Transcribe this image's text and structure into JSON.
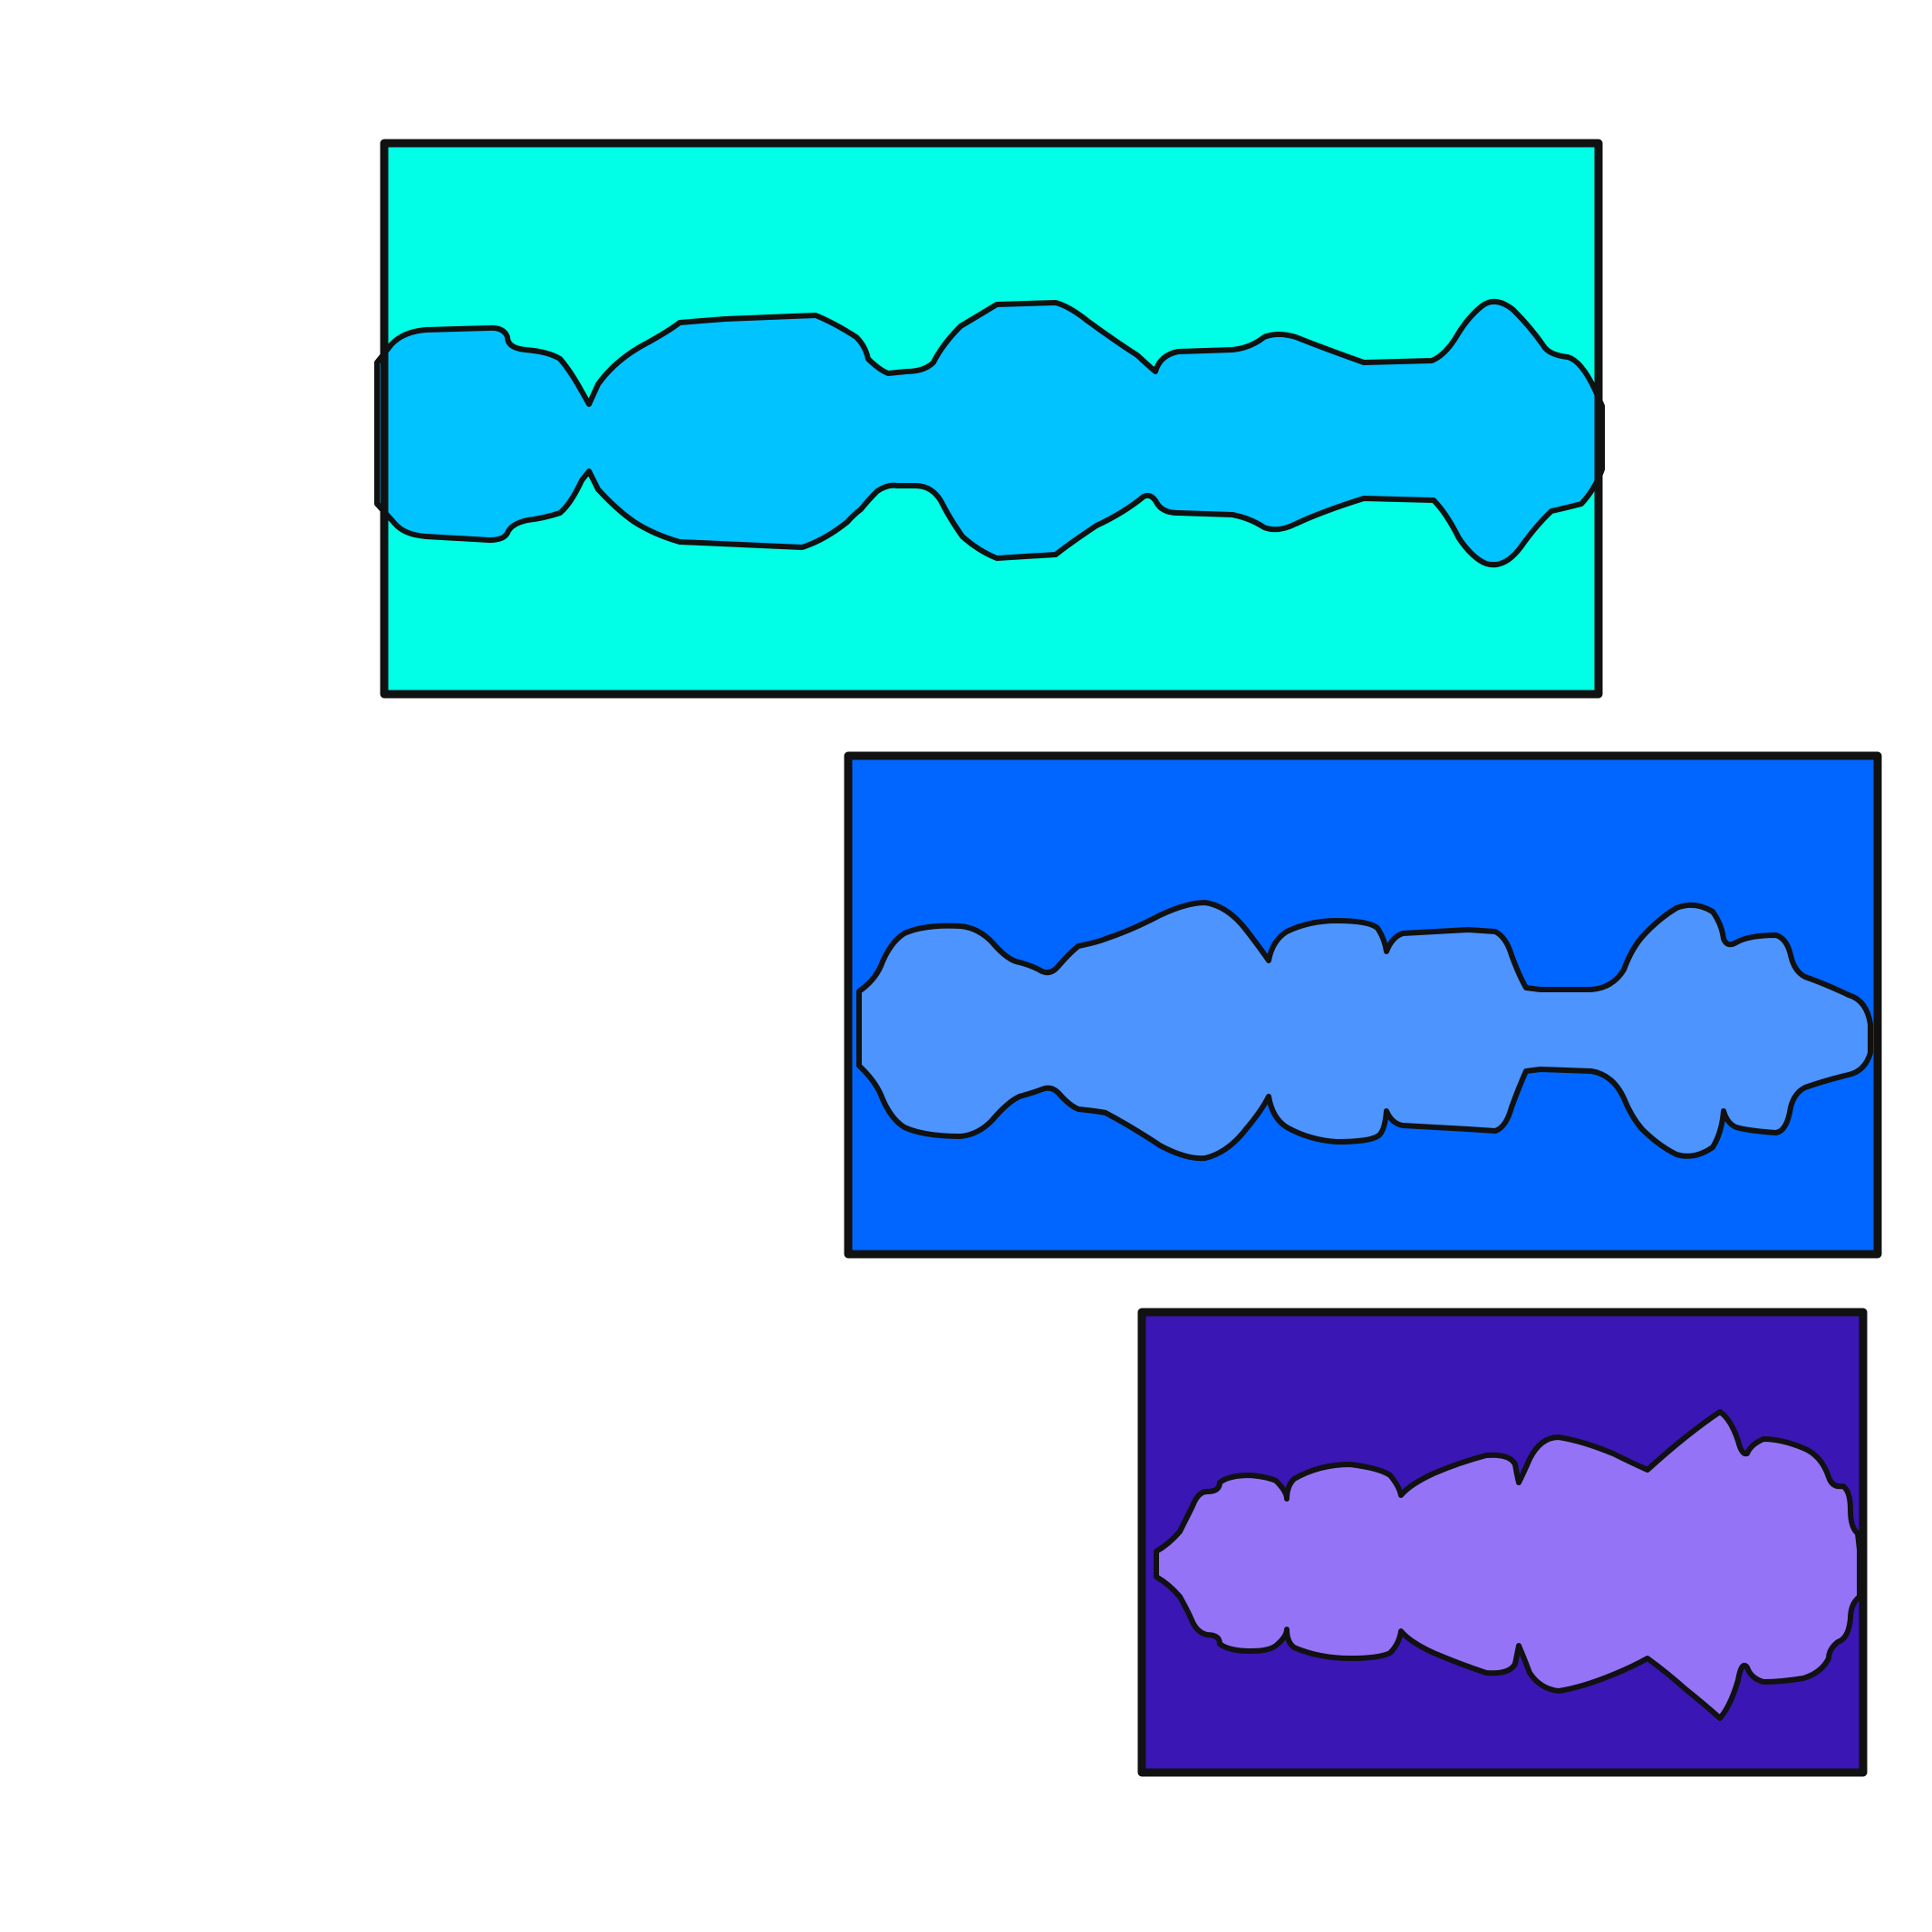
{
  "colors": {
    "background": "#ffffff",
    "outline": "#111111",
    "panel_top_fill": "#00ffe6",
    "wave_top_fill": "#00c3ff",
    "panel_middle_fill": "#0066ff",
    "wave_middle_fill": "#4d94ff",
    "panel_bottom_fill": "#3a16b4",
    "wave_bottom_fill": "#9473f7"
  },
  "panels": [
    {
      "name": "top",
      "content": "audio-waveform"
    },
    {
      "name": "middle",
      "content": "audio-waveform"
    },
    {
      "name": "bottom",
      "content": "audio-waveform"
    }
  ]
}
